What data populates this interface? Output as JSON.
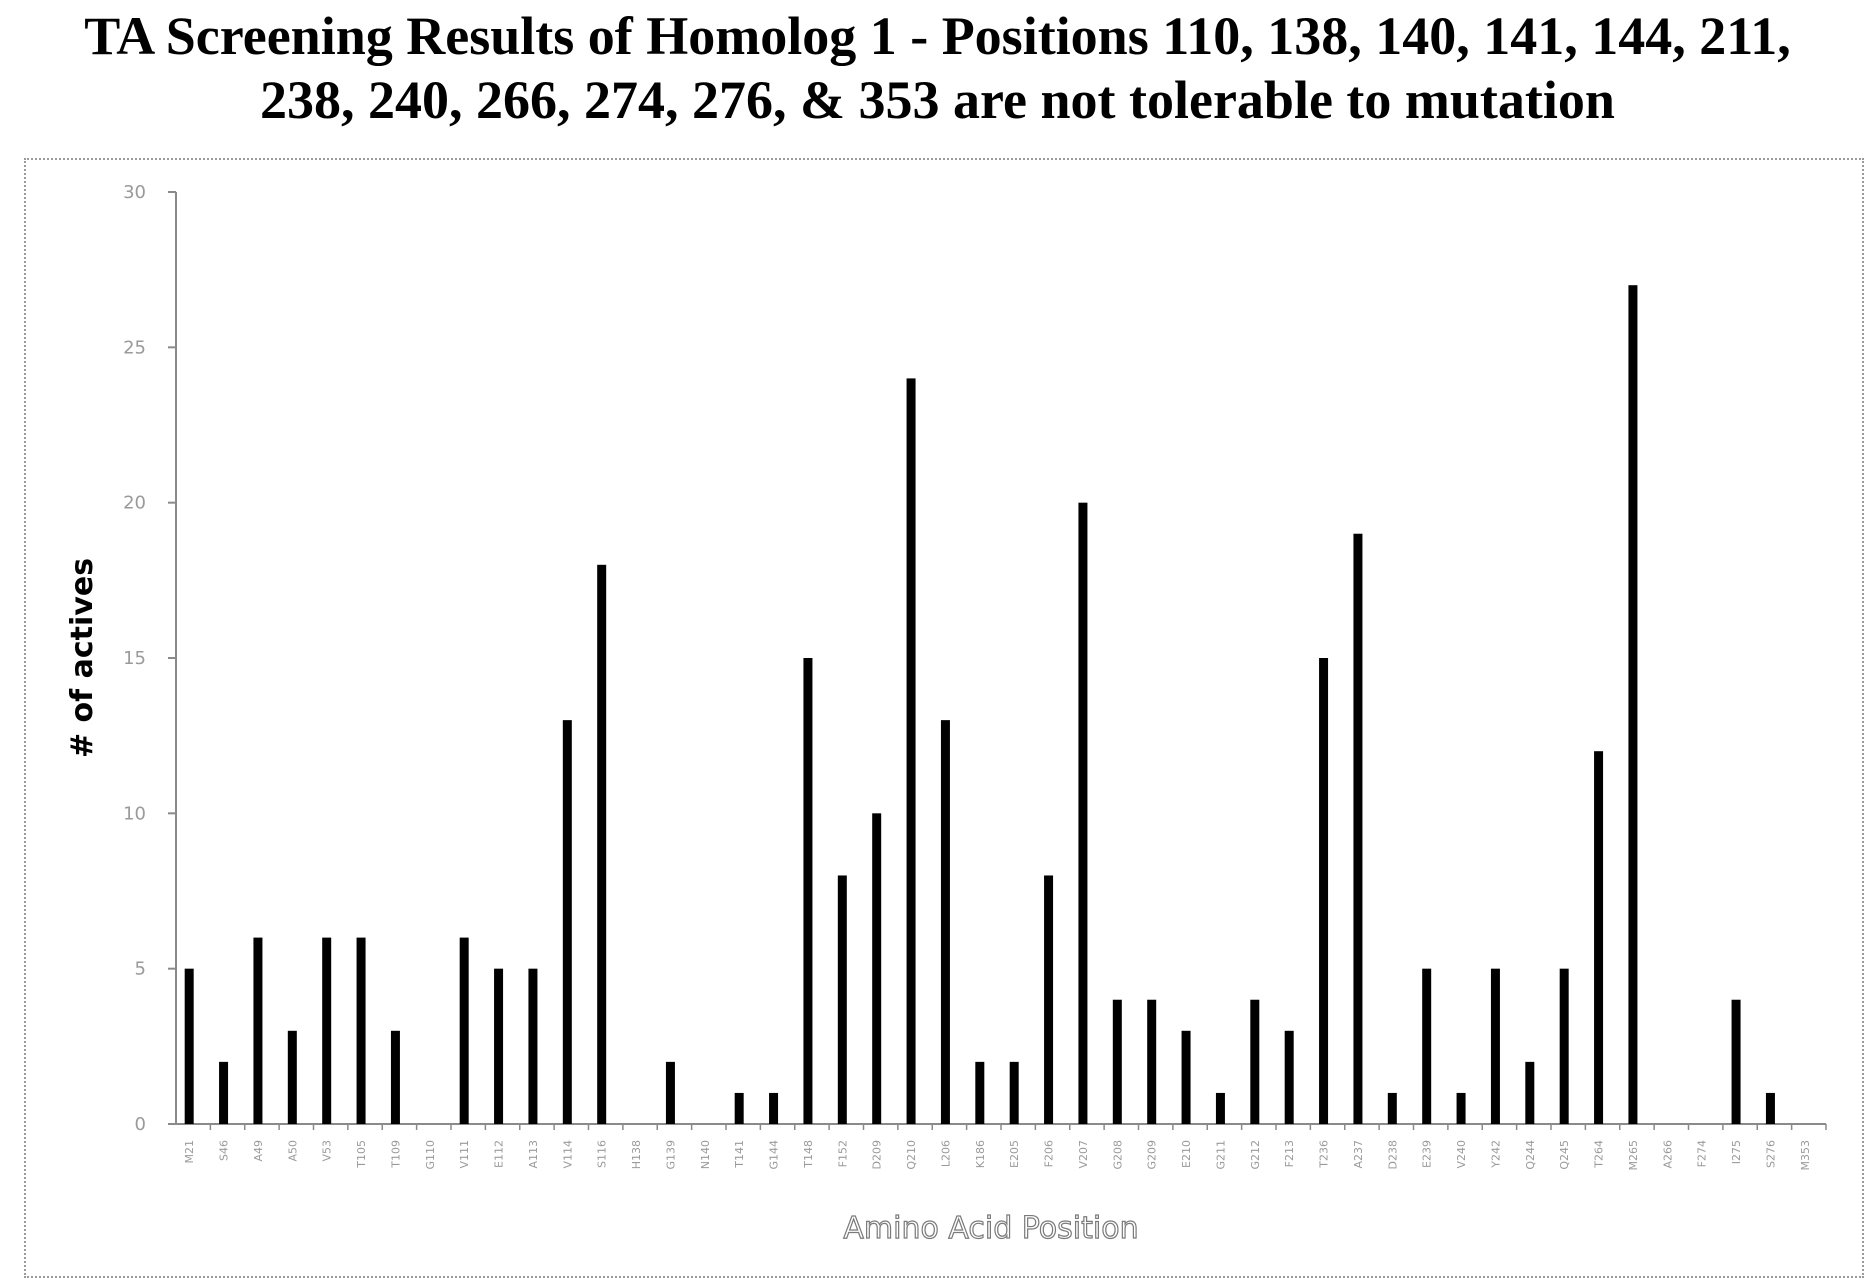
{
  "title_line1": "TA Screening Results of Homolog 1 - Positions 110, 138, 140, 141, 144, 211,",
  "title_line2": "238, 240, 266, 274, 276, & 353 are not tolerable to mutation",
  "chart_data": {
    "type": "bar",
    "title": "TA Screening Results of Homolog 1 - Positions 110, 138, 140, 141, 144, 211, 238, 240, 266, 274, 276, & 353 are not tolerable to mutation",
    "xlabel": "Amino Acid Position",
    "ylabel": "# of actives",
    "ylim": [
      0,
      30
    ],
    "yticks": [
      0,
      5,
      10,
      15,
      20,
      25,
      30
    ],
    "grid": false,
    "categories": [
      "M21",
      "S46",
      "A49",
      "A50",
      "V53",
      "T105",
      "T109",
      "G110",
      "V111",
      "E112",
      "A113",
      "V114",
      "S116",
      "H138",
      "G139",
      "N140",
      "T141",
      "G144",
      "T148",
      "F152",
      "D209",
      "Q210",
      "L206",
      "K186",
      "E205",
      "F206",
      "V207",
      "G208",
      "G209",
      "E210",
      "G211",
      "G212",
      "F213",
      "T236",
      "A237",
      "D238",
      "E239",
      "V240",
      "Y242",
      "Q244",
      "Q245",
      "T264",
      "M265",
      "A266",
      "F274",
      "I275",
      "S276",
      "M353"
    ],
    "values": [
      5,
      2,
      6,
      3,
      6,
      6,
      3,
      0,
      6,
      5,
      5,
      13,
      18,
      0,
      2,
      0,
      1,
      1,
      15,
      8,
      10,
      24,
      13,
      2,
      2,
      8,
      20,
      4,
      4,
      3,
      1,
      4,
      3,
      15,
      19,
      1,
      5,
      1,
      5,
      2,
      5,
      12,
      27,
      0,
      0,
      4,
      1,
      0
    ],
    "bar_color": "#000000"
  }
}
